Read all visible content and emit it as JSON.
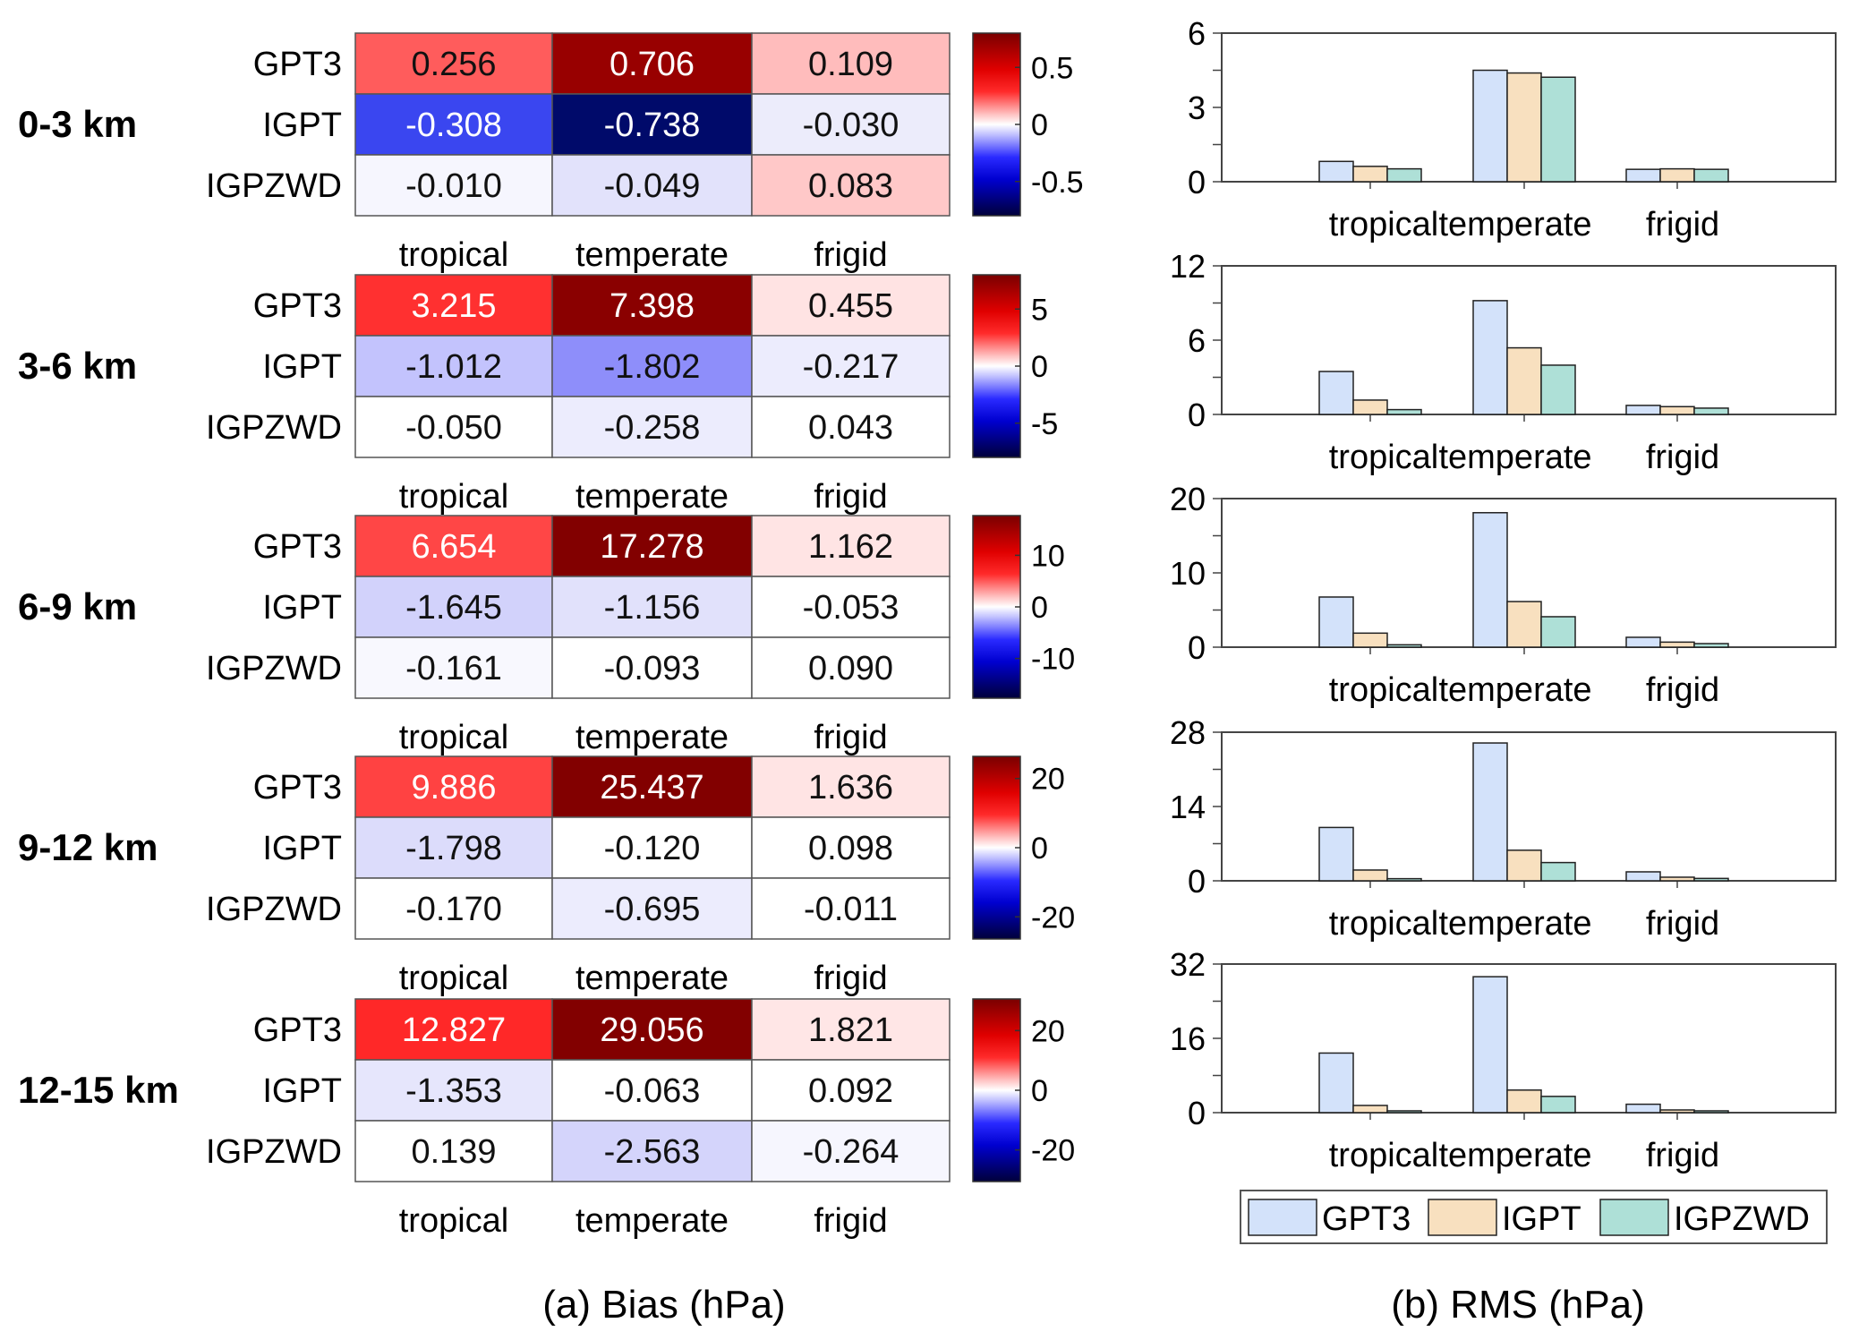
{
  "chart_data": [
    {
      "type": "heatmap",
      "title": "(a) Bias (hPa)",
      "columns": [
        "tropical",
        "temperate",
        "frigid"
      ],
      "rows": [
        "GPT3",
        "IGPT",
        "IGPZWD"
      ],
      "colormap": "blue-white-red diverging",
      "panels": [
        {
          "label": "0-3 km",
          "values": [
            [
              0.256,
              0.706,
              0.109
            ],
            [
              -0.308,
              -0.738,
              -0.03
            ],
            [
              -0.01,
              -0.049,
              0.083
            ]
          ],
          "display": [
            [
              "0.256",
              "0.706",
              "0.109"
            ],
            [
              "-0.308",
              "-0.738",
              "-0.030"
            ],
            [
              "-0.010",
              "-0.049",
              "0.083"
            ]
          ],
          "cell_colors": [
            [
              "#ff5c5c",
              "#980000",
              "#ffbcbc"
            ],
            [
              "#3a46f0",
              "#000a6a",
              "#ececfb"
            ],
            [
              "#f6f6fe",
              "#e2e2fb",
              "#ffc8c8"
            ]
          ],
          "text_colors": [
            [
              "#111111",
              "#ffffff",
              "#111111"
            ],
            [
              "#ffffff",
              "#ffffff",
              "#111111"
            ],
            [
              "#111111",
              "#111111",
              "#111111"
            ]
          ],
          "colorbar": {
            "range": [
              -0.8,
              0.8
            ],
            "ticks": [
              "0.5",
              "0",
              "-0.5"
            ],
            "tick_values": [
              0.5,
              0,
              -0.5
            ]
          }
        },
        {
          "label": "3-6 km",
          "values": [
            [
              3.215,
              7.398,
              0.455
            ],
            [
              -1.012,
              -1.802,
              -0.217
            ],
            [
              -0.05,
              -0.258,
              0.043
            ]
          ],
          "display": [
            [
              "3.215",
              "7.398",
              "0.455"
            ],
            [
              "-1.012",
              "-1.802",
              "-0.217"
            ],
            [
              "-0.050",
              "-0.258",
              "0.043"
            ]
          ],
          "cell_colors": [
            [
              "#ff3030",
              "#8a0000",
              "#ffe3e3"
            ],
            [
              "#c3c3fd",
              "#8e8efa",
              "#ececfd"
            ],
            [
              "#ffffff",
              "#ececfd",
              "#ffffff"
            ]
          ],
          "text_colors": [
            [
              "#ffffff",
              "#ffffff",
              "#111111"
            ],
            [
              "#111111",
              "#111111",
              "#111111"
            ],
            [
              "#111111",
              "#111111",
              "#111111"
            ]
          ],
          "colorbar": {
            "range": [
              -8,
              8
            ],
            "ticks": [
              "5",
              "0",
              "-5"
            ],
            "tick_values": [
              5,
              0,
              -5
            ]
          }
        },
        {
          "label": "6-9 km",
          "values": [
            [
              6.654,
              17.278,
              1.162
            ],
            [
              -1.645,
              -1.156,
              -0.053
            ],
            [
              -0.161,
              -0.093,
              0.09
            ]
          ],
          "display": [
            [
              "6.654",
              "17.278",
              "1.162"
            ],
            [
              "-1.645",
              "-1.156",
              "-0.053"
            ],
            [
              "-0.161",
              "-0.093",
              "0.090"
            ]
          ],
          "cell_colors": [
            [
              "#ff4646",
              "#820000",
              "#ffe4e4"
            ],
            [
              "#d2d2fb",
              "#e1e1fb",
              "#ffffff"
            ],
            [
              "#f8f8fe",
              "#ffffff",
              "#ffffff"
            ]
          ],
          "text_colors": [
            [
              "#ffffff",
              "#ffffff",
              "#111111"
            ],
            [
              "#111111",
              "#111111",
              "#111111"
            ],
            [
              "#111111",
              "#111111",
              "#111111"
            ]
          ],
          "colorbar": {
            "range": [
              -17.7,
              17.7
            ],
            "ticks": [
              "10",
              "0",
              "-10"
            ],
            "tick_values": [
              10,
              0,
              -10
            ]
          }
        },
        {
          "label": "9-12 km",
          "values": [
            [
              9.886,
              25.437,
              1.636
            ],
            [
              -1.798,
              -0.12,
              0.098
            ],
            [
              -0.17,
              -0.695,
              -0.011
            ]
          ],
          "display": [
            [
              "9.886",
              "25.437",
              "1.636"
            ],
            [
              "-1.798",
              "-0.120",
              "0.098"
            ],
            [
              "-0.170",
              "-0.695",
              "-0.011"
            ]
          ],
          "cell_colors": [
            [
              "#ff4242",
              "#820000",
              "#ffe4e4"
            ],
            [
              "#dcdcfb",
              "#ffffff",
              "#ffffff"
            ],
            [
              "#ffffff",
              "#ececfd",
              "#ffffff"
            ]
          ],
          "text_colors": [
            [
              "#ffffff",
              "#ffffff",
              "#111111"
            ],
            [
              "#111111",
              "#111111",
              "#111111"
            ],
            [
              "#111111",
              "#111111",
              "#111111"
            ]
          ],
          "colorbar": {
            "range": [
              -26.4,
              26.4
            ],
            "ticks": [
              "20",
              "0",
              "-20"
            ],
            "tick_values": [
              20,
              0,
              -20
            ]
          }
        },
        {
          "label": "12-15 km",
          "values": [
            [
              12.827,
              29.056,
              1.821
            ],
            [
              -1.353,
              -0.063,
              0.092
            ],
            [
              0.139,
              -2.563,
              -0.264
            ]
          ],
          "display": [
            [
              "12.827",
              "29.056",
              "1.821"
            ],
            [
              "-1.353",
              "-0.063",
              "0.092"
            ],
            [
              "0.139",
              "-2.563",
              "-0.264"
            ]
          ],
          "cell_colors": [
            [
              "#ff2828",
              "#820000",
              "#ffe6e6"
            ],
            [
              "#e6e6fc",
              "#ffffff",
              "#ffffff"
            ],
            [
              "#ffffff",
              "#d4d4fb",
              "#f6f6fe"
            ]
          ],
          "text_colors": [
            [
              "#ffffff",
              "#ffffff",
              "#111111"
            ],
            [
              "#111111",
              "#111111",
              "#111111"
            ],
            [
              "#111111",
              "#111111",
              "#111111"
            ]
          ],
          "colorbar": {
            "range": [
              -30.6,
              30.6
            ],
            "ticks": [
              "20",
              "0",
              "-20"
            ],
            "tick_values": [
              20,
              0,
              -20
            ]
          }
        }
      ]
    },
    {
      "type": "bar",
      "title": "(b) RMS (hPa)",
      "categories": [
        "tropical",
        "temperate",
        "frigid"
      ],
      "series_names": [
        "GPT3",
        "IGPT",
        "IGPZWD"
      ],
      "series_colors": [
        "#d3e2fa",
        "#f8e0bf",
        "#aee0d7"
      ],
      "legend": "bottom-center",
      "panels": [
        {
          "label": "0-3 km",
          "ylim": [
            0,
            6
          ],
          "yticks": [
            0,
            3,
            6
          ],
          "series": [
            {
              "name": "GPT3",
              "values": [
                0.82,
                4.5,
                0.5
              ]
            },
            {
              "name": "IGPT",
              "values": [
                0.62,
                4.39,
                0.52
              ]
            },
            {
              "name": "IGPZWD",
              "values": [
                0.52,
                4.22,
                0.5
              ]
            }
          ]
        },
        {
          "label": "3-6 km",
          "ylim": [
            0,
            12
          ],
          "yticks": [
            0,
            6,
            12
          ],
          "series": [
            {
              "name": "GPT3",
              "values": [
                3.47,
                9.19,
                0.73
              ]
            },
            {
              "name": "IGPT",
              "values": [
                1.16,
                5.38,
                0.63
              ]
            },
            {
              "name": "IGPZWD",
              "values": [
                0.39,
                3.98,
                0.51
              ]
            }
          ]
        },
        {
          "label": "6-9 km",
          "ylim": [
            0,
            20
          ],
          "yticks": [
            0,
            10,
            20
          ],
          "series": [
            {
              "name": "GPT3",
              "values": [
                6.75,
                18.1,
                1.33
              ]
            },
            {
              "name": "IGPT",
              "values": [
                1.89,
                6.14,
                0.68
              ]
            },
            {
              "name": "IGPZWD",
              "values": [
                0.32,
                4.1,
                0.48
              ]
            }
          ]
        },
        {
          "label": "9-12 km",
          "ylim": [
            0,
            28
          ],
          "yticks": [
            0,
            14,
            28
          ],
          "series": [
            {
              "name": "GPT3",
              "values": [
                10.05,
                25.97,
                1.69
              ]
            },
            {
              "name": "IGPT",
              "values": [
                2.03,
                5.76,
                0.68
              ]
            },
            {
              "name": "IGPZWD",
              "values": [
                0.4,
                3.44,
                0.45
              ]
            }
          ]
        },
        {
          "label": "12-15 km",
          "ylim": [
            0,
            32
          ],
          "yticks": [
            0,
            16,
            32
          ],
          "series": [
            {
              "name": "GPT3",
              "values": [
                12.83,
                29.27,
                1.81
              ]
            },
            {
              "name": "IGPT",
              "values": [
                1.55,
                4.86,
                0.58
              ]
            },
            {
              "name": "IGPZWD",
              "values": [
                0.39,
                3.5,
                0.39
              ]
            }
          ]
        }
      ]
    }
  ],
  "captions": {
    "bias": "(a) Bias (hPa)",
    "rms": "(b) RMS (hPa)"
  }
}
